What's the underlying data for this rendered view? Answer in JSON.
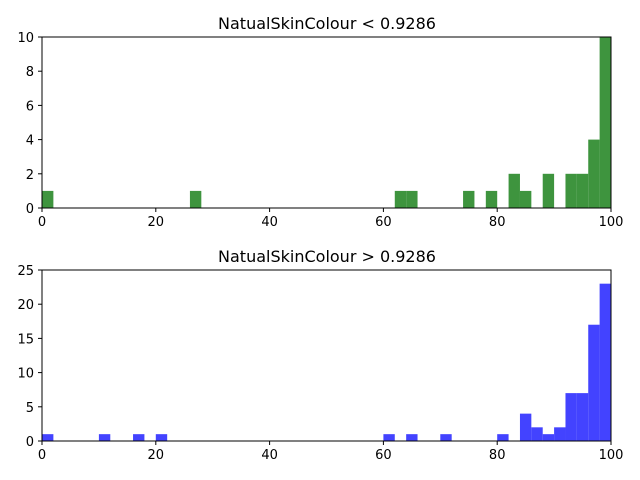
{
  "chart_data": [
    {
      "type": "bar",
      "title": "NatualSkinColour < 0.9286",
      "xlabel": "",
      "ylabel": "",
      "bar_color": "#2e8b2e",
      "bin_width": 2,
      "xlim": [
        0,
        100
      ],
      "ylim": [
        0,
        10
      ],
      "xticks": [
        0,
        20,
        40,
        60,
        80,
        100
      ],
      "yticks": [
        0,
        2,
        4,
        6,
        8,
        10
      ],
      "grid": false,
      "bins": [
        {
          "x": 0,
          "count": 1
        },
        {
          "x": 26,
          "count": 1
        },
        {
          "x": 62,
          "count": 1
        },
        {
          "x": 64,
          "count": 1
        },
        {
          "x": 74,
          "count": 1
        },
        {
          "x": 78,
          "count": 1
        },
        {
          "x": 82,
          "count": 2
        },
        {
          "x": 84,
          "count": 1
        },
        {
          "x": 88,
          "count": 2
        },
        {
          "x": 92,
          "count": 2
        },
        {
          "x": 94,
          "count": 2
        },
        {
          "x": 96,
          "count": 4
        },
        {
          "x": 98,
          "count": 10
        }
      ]
    },
    {
      "type": "bar",
      "title": "NatualSkinColour > 0.9286",
      "xlabel": "",
      "ylabel": "",
      "bar_color": "#3333ff",
      "bin_width": 2,
      "xlim": [
        0,
        100
      ],
      "ylim": [
        0,
        25
      ],
      "xticks": [
        0,
        20,
        40,
        60,
        80,
        100
      ],
      "yticks": [
        0,
        5,
        10,
        15,
        20,
        25
      ],
      "grid": false,
      "bins": [
        {
          "x": 0,
          "count": 1
        },
        {
          "x": 10,
          "count": 1
        },
        {
          "x": 16,
          "count": 1
        },
        {
          "x": 20,
          "count": 1
        },
        {
          "x": 60,
          "count": 1
        },
        {
          "x": 64,
          "count": 1
        },
        {
          "x": 70,
          "count": 1
        },
        {
          "x": 80,
          "count": 1
        },
        {
          "x": 84,
          "count": 4
        },
        {
          "x": 86,
          "count": 2
        },
        {
          "x": 88,
          "count": 1
        },
        {
          "x": 90,
          "count": 2
        },
        {
          "x": 92,
          "count": 7
        },
        {
          "x": 94,
          "count": 7
        },
        {
          "x": 96,
          "count": 17
        },
        {
          "x": 98,
          "count": 23
        }
      ]
    }
  ]
}
